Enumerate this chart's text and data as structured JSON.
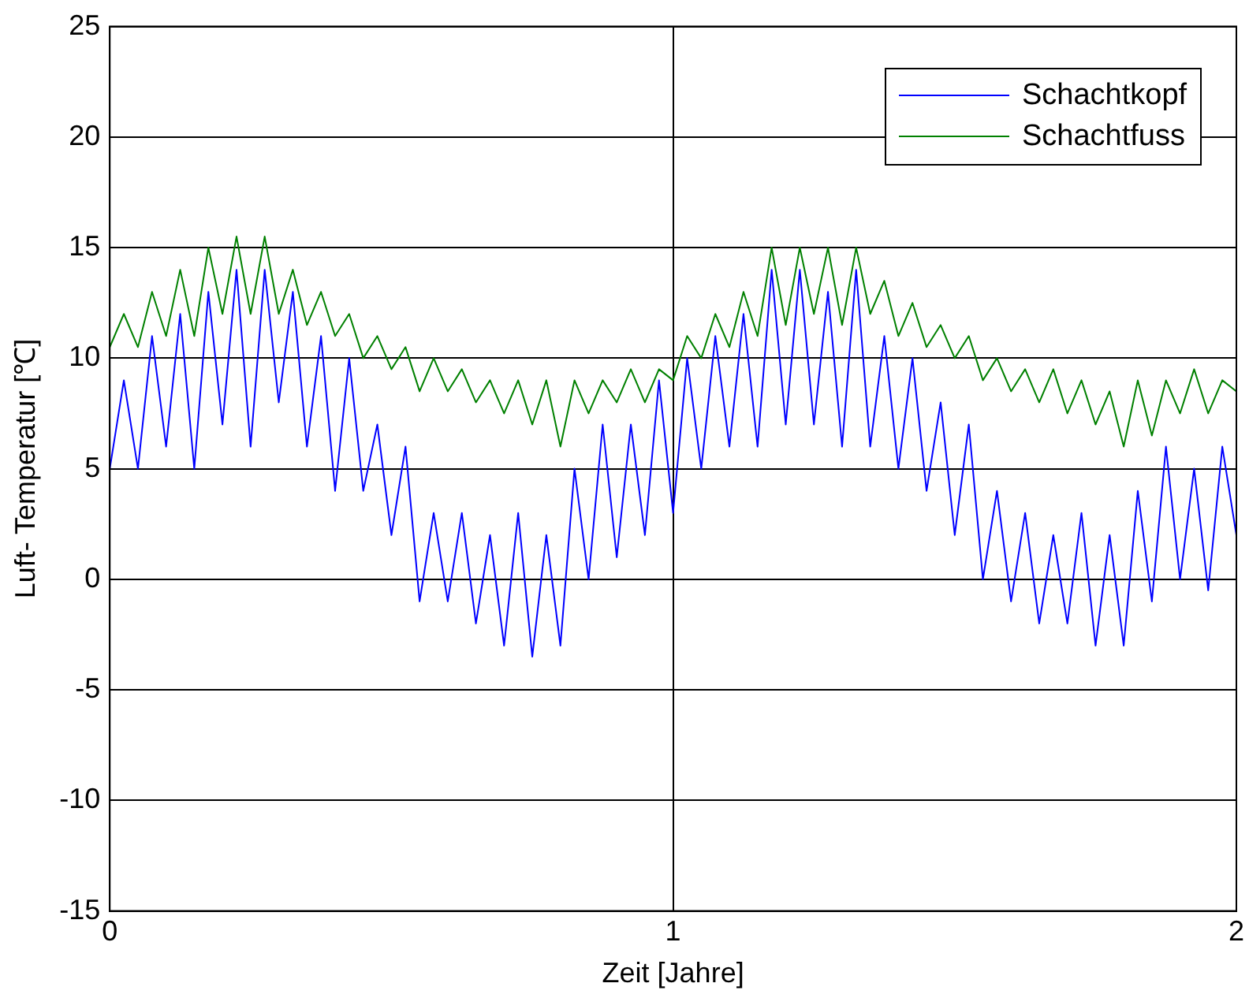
{
  "chart_data": {
    "type": "line",
    "xlabel": "Zeit [Jahre]",
    "ylabel": "Luft- Temperatur [℃]",
    "x": [
      0,
      0.025,
      0.05,
      0.075,
      0.1,
      0.125,
      0.15,
      0.175,
      0.2,
      0.225,
      0.25,
      0.275,
      0.3,
      0.325,
      0.35,
      0.375,
      0.4,
      0.425,
      0.45,
      0.475,
      0.5,
      0.525,
      0.55,
      0.575,
      0.6,
      0.625,
      0.65,
      0.675,
      0.7,
      0.725,
      0.75,
      0.775,
      0.8,
      0.825,
      0.85,
      0.875,
      0.9,
      0.925,
      0.95,
      0.975,
      1,
      1.025,
      1.05,
      1.075,
      1.1,
      1.125,
      1.15,
      1.175,
      1.2,
      1.225,
      1.25,
      1.275,
      1.3,
      1.325,
      1.35,
      1.375,
      1.4,
      1.425,
      1.45,
      1.475,
      1.5,
      1.525,
      1.55,
      1.575,
      1.6,
      1.625,
      1.65,
      1.675,
      1.7,
      1.725,
      1.75,
      1.775,
      1.8,
      1.825,
      1.85,
      1.875,
      1.9,
      1.925,
      1.95,
      1.975,
      2
    ],
    "series": [
      {
        "name": "Schachtkopf",
        "color": "#0000ff",
        "values": [
          5,
          9,
          5,
          11,
          6,
          12,
          5,
          13,
          7,
          14,
          6,
          14,
          8,
          13,
          6,
          11,
          4,
          10,
          4,
          7,
          2,
          6,
          -1,
          3,
          -1,
          3,
          -2,
          2,
          -3,
          3,
          -3.5,
          2,
          -3,
          5,
          0,
          7,
          1,
          7,
          2,
          9,
          3,
          10,
          5,
          11,
          6,
          12,
          6,
          14,
          7,
          14,
          7,
          13,
          6,
          14,
          6,
          11,
          5,
          10,
          4,
          8,
          2,
          7,
          0,
          4,
          -1,
          3,
          -2,
          2,
          -2,
          3,
          -3,
          2,
          -3,
          4,
          -1,
          6,
          0,
          5,
          -0.5,
          6,
          2
        ]
      },
      {
        "name": "Schachtfuss",
        "color": "#008000",
        "values": [
          10.5,
          12,
          10.5,
          13,
          11,
          14,
          11,
          15,
          12,
          15.5,
          12,
          15.5,
          12,
          14,
          11.5,
          13,
          11,
          12,
          10,
          11,
          9.5,
          10.5,
          8.5,
          10,
          8.5,
          9.5,
          8,
          9,
          7.5,
          9,
          7,
          9,
          6,
          9,
          7.5,
          9,
          8,
          9.5,
          8,
          9.5,
          9,
          11,
          10,
          12,
          10.5,
          13,
          11,
          15,
          11.5,
          15,
          12,
          15,
          11.5,
          15,
          12,
          13.5,
          11,
          12.5,
          10.5,
          11.5,
          10,
          11,
          9,
          10,
          8.5,
          9.5,
          8,
          9.5,
          7.5,
          9,
          7,
          8.5,
          6,
          9,
          6.5,
          9,
          7.5,
          9.5,
          7.5,
          9,
          8.5
        ]
      }
    ],
    "xlim": [
      0,
      2
    ],
    "xticks": [
      0,
      1,
      2
    ],
    "ylim": [
      -15,
      25
    ],
    "yticks": [
      -15,
      -10,
      -5,
      0,
      5,
      10,
      15,
      20,
      25
    ],
    "grid": true,
    "legend": "top right",
    "marker": "none",
    "line_style": "solid"
  }
}
